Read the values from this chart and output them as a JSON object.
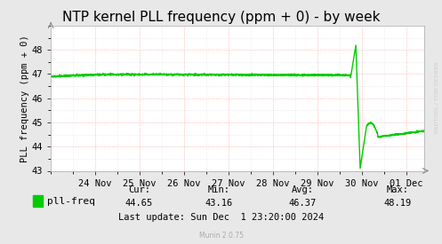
{
  "title": "NTP kernel PLL frequency (ppm + 0) - by week",
  "ylabel": "PLL frequency (ppm + 0)",
  "background_color": "#e8e8e8",
  "plot_bg_color": "#ffffff",
  "grid_color_major": "#ff9999",
  "line_color": "#00cc00",
  "line_width": 1.0,
  "ylim": [
    43,
    49
  ],
  "yticks": [
    43,
    44,
    45,
    46,
    47,
    48
  ],
  "x_tick_positions": [
    1,
    2,
    3,
    4,
    5,
    6,
    7,
    8
  ],
  "x_tick_labels": [
    "24 Nov",
    "25 Nov",
    "26 Nov",
    "27 Nov",
    "28 Nov",
    "29 Nov",
    "30 Nov",
    "01 Dec"
  ],
  "xlim": [
    0,
    8.4
  ],
  "legend_label": "pll-freq",
  "legend_color": "#00cc00",
  "cur_val": "44.65",
  "min_val": "43.16",
  "avg_val": "46.37",
  "max_val": "48.19",
  "last_update": "Last update: Sun Dec  1 23:20:00 2024",
  "munin_text": "Munin 2.0.75",
  "watermark": "RRDTOOL / TOBI OETIKER",
  "title_fontsize": 11,
  "label_fontsize": 7.5,
  "tick_fontsize": 7.5,
  "legend_fontsize": 8,
  "stats_fontsize": 7.5
}
